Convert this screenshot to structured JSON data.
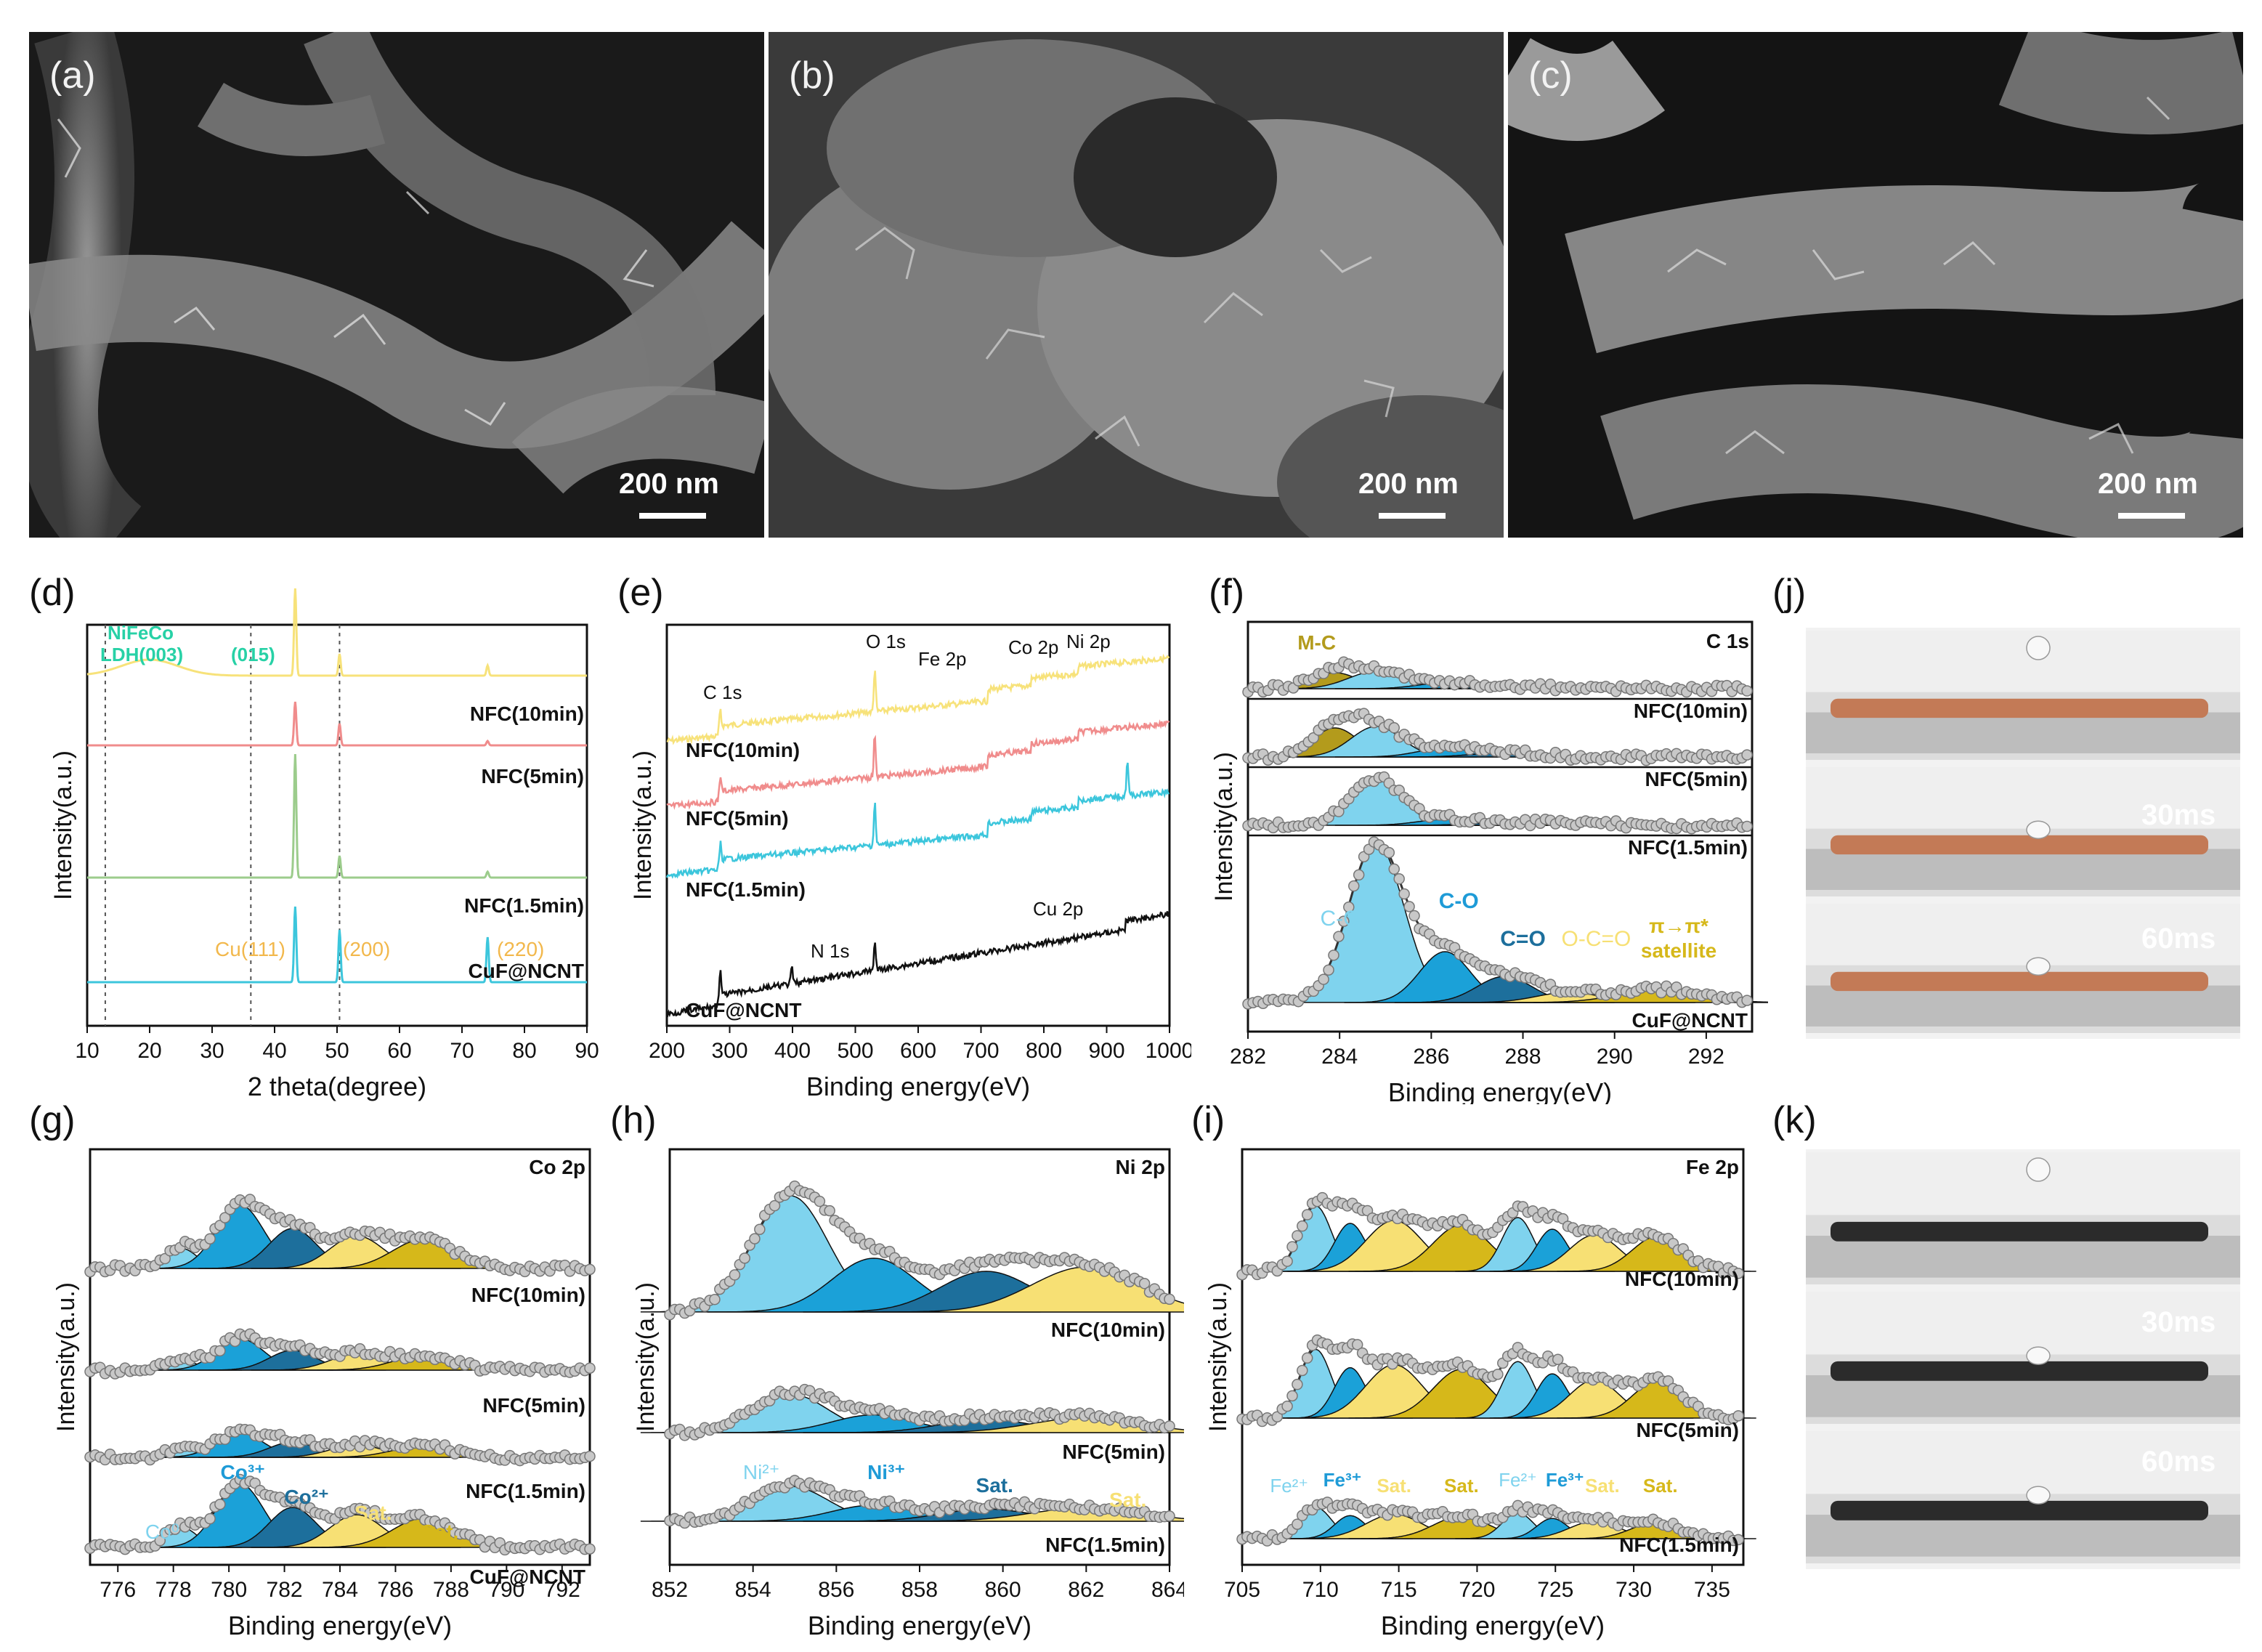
{
  "sem_panels": [
    {
      "label": "(a)",
      "scale": "200 nm"
    },
    {
      "label": "(b)",
      "scale": "200 nm"
    },
    {
      "label": "(c)",
      "scale": "200 nm"
    }
  ],
  "colors": {
    "c_yellow": "#f7e27a",
    "c_pink": "#f08c8c",
    "c_green": "#9ccc8c",
    "c_cyan": "#3cc6dc",
    "fit_light": "#7fd3ee",
    "fit_mid": "#1ba1d8",
    "fit_dark": "#1d6f9c",
    "fit_yellow": "#f7e074",
    "fit_olive": "#d6b81a",
    "mc": "#b39b1c",
    "teal_text": "#27d1a6",
    "orange_text": "#f2b84c",
    "blue_text": "#1e9bd7"
  },
  "chart_data": [
    {
      "id": "d",
      "panel": "(d)",
      "type": "line",
      "xlabel": "2 theta(degree)",
      "ylabel": "Intensity(a.u.)",
      "xlim": [
        10,
        90
      ],
      "xticks": [
        10,
        20,
        30,
        40,
        50,
        60,
        70,
        80,
        90
      ],
      "series": [
        {
          "name": "NFC(10min)",
          "color_key": "c_yellow"
        },
        {
          "name": "NFC(5min)",
          "color_key": "c_pink"
        },
        {
          "name": "NFC(1.5min)",
          "color_key": "c_green"
        },
        {
          "name": "CuF@NCNT",
          "color_key": "c_cyan"
        }
      ],
      "annotations": [
        {
          "text": "NiFeCo",
          "color_key": "teal_text"
        },
        {
          "text": "LDH(003)",
          "color_key": "teal_text"
        },
        {
          "text": "(015)",
          "color_key": "teal_text"
        },
        {
          "text": "Cu(111)",
          "color_key": "orange_text"
        },
        {
          "text": "(200)",
          "color_key": "orange_text"
        },
        {
          "text": "(220)",
          "color_key": "orange_text"
        }
      ],
      "reference_lines_x": [
        12.9,
        36.2,
        50.4
      ]
    },
    {
      "id": "e",
      "panel": "(e)",
      "type": "line",
      "xlabel": "Binding energy(eV)",
      "ylabel": "Intensity(a.u.)",
      "xlim": [
        200,
        1000
      ],
      "xticks": [
        200,
        300,
        400,
        500,
        600,
        700,
        800,
        900,
        1000
      ],
      "series": [
        {
          "name": "NFC(10min)",
          "color_key": "c_yellow"
        },
        {
          "name": "NFC(5min)",
          "color_key": "c_pink"
        },
        {
          "name": "NFC(1.5min)",
          "color_key": "c_cyan"
        },
        {
          "name": "CuF@NCNT",
          "color_key": "c_black"
        }
      ],
      "annotations": [
        "C 1s",
        "O 1s",
        "Fe 2p",
        "Co 2p",
        "Ni 2p",
        "N 1s",
        "Cu 2p"
      ]
    },
    {
      "id": "f",
      "panel": "(f)",
      "type": "line",
      "title": "C 1s",
      "xlabel": "Binding energy(eV)",
      "ylabel": "Intensity(a.u.)",
      "xlim": [
        282,
        293
      ],
      "xticks": [
        282,
        284,
        286,
        288,
        290,
        292
      ],
      "series": [
        {
          "name": "NFC(10min)"
        },
        {
          "name": "NFC(5min)"
        },
        {
          "name": "NFC(1.5min)"
        },
        {
          "name": "CuF@NCNT"
        }
      ],
      "peaks": [
        {
          "label": "M-C",
          "center": 283.9
        },
        {
          "label": "C-C",
          "center": 284.8
        },
        {
          "label": "C-O",
          "center": 286.3
        },
        {
          "label": "C=O",
          "center": 287.6
        },
        {
          "label": "O-C=O",
          "center": 289.0
        },
        {
          "label": "π→π*",
          "center": 291.0
        },
        {
          "label": "satellite",
          "center": 291.0
        }
      ]
    },
    {
      "id": "g",
      "panel": "(g)",
      "type": "line",
      "title": "Co 2p",
      "xlabel": "Binding energy(eV)",
      "ylabel": "Intensity(a.u.)",
      "xlim": [
        775,
        793
      ],
      "xticks": [
        776,
        778,
        780,
        782,
        784,
        786,
        788,
        790,
        792
      ],
      "series": [
        {
          "name": "NFC(10min)"
        },
        {
          "name": "NFC(5min)"
        },
        {
          "name": "NFC(1.5min)"
        },
        {
          "name": "CuF@NCNT"
        }
      ],
      "peaks": [
        {
          "label": "Co⁰",
          "center": 778.3
        },
        {
          "label": "Co³⁺",
          "center": 780.4
        },
        {
          "label": "Co²⁺",
          "center": 782.3
        },
        {
          "label": "Sat.",
          "center": 784.6
        },
        {
          "label": "Sat.",
          "center": 787.0
        }
      ]
    },
    {
      "id": "h",
      "panel": "(h)",
      "type": "line",
      "title": "Ni 2p",
      "xlabel": "Binding energy(eV)",
      "ylabel": "Intensity(a.u.)",
      "xlim": [
        852,
        864
      ],
      "xticks": [
        852,
        854,
        856,
        858,
        860,
        862,
        864
      ],
      "series": [
        {
          "name": "NFC(10min)"
        },
        {
          "name": "NFC(5min)"
        },
        {
          "name": "NFC(1.5min)"
        }
      ],
      "peaks": [
        {
          "label": "Ni²⁺",
          "center": 854.9
        },
        {
          "label": "Ni³⁺",
          "center": 856.9
        },
        {
          "label": "Sat.",
          "center": 859.6
        },
        {
          "label": "Sat.",
          "center": 862.0
        }
      ]
    },
    {
      "id": "i",
      "panel": "(i)",
      "type": "line",
      "title": "Fe 2p",
      "xlabel": "Binding energy(eV)",
      "ylabel": "Intensity(a.u.)",
      "xlim": [
        705,
        737
      ],
      "xticks": [
        705,
        710,
        715,
        720,
        725,
        730,
        735
      ],
      "series": [
        {
          "name": "NFC(10min)"
        },
        {
          "name": "NFC(5min)"
        },
        {
          "name": "NFC(1.5min)"
        }
      ],
      "peaks": [
        {
          "label": "Fe²⁺",
          "center": 709.7
        },
        {
          "label": "Fe³⁺",
          "center": 711.9
        },
        {
          "label": "Sat.",
          "center": 714.7
        },
        {
          "label": "Sat.",
          "center": 719.0
        },
        {
          "label": "Fe²⁺",
          "center": 722.6
        },
        {
          "label": "Fe³⁺",
          "center": 724.8
        },
        {
          "label": "Sat.",
          "center": 727.5
        },
        {
          "label": "Sat.",
          "center": 731.5
        }
      ]
    }
  ],
  "photo_panels": [
    {
      "label": "(j)",
      "frames": [
        "",
        "30ms",
        "60ms"
      ],
      "sample": "copper"
    },
    {
      "label": "(k)",
      "frames": [
        "",
        "30ms",
        "60ms"
      ],
      "sample": "black"
    }
  ]
}
